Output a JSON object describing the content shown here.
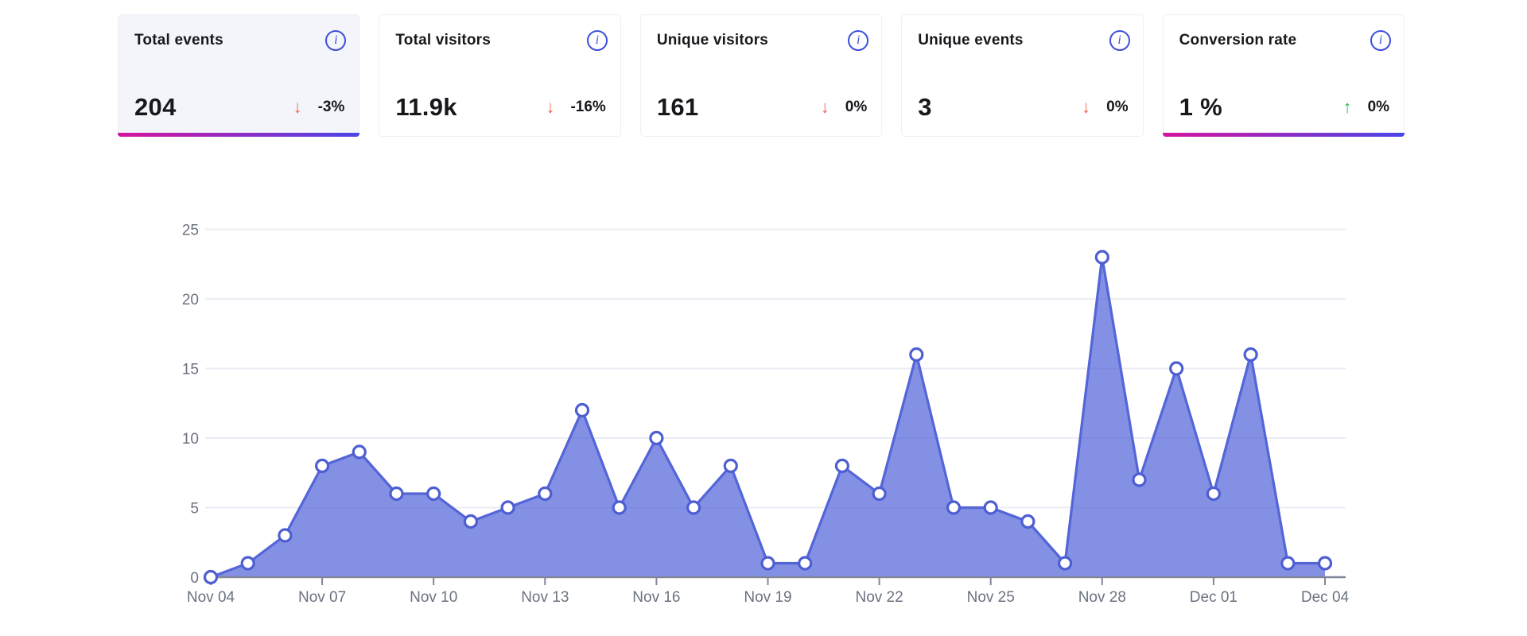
{
  "cards": [
    {
      "title": "Total events",
      "value": "204",
      "delta": "-3%",
      "trend": "down"
    },
    {
      "title": "Total visitors",
      "value": "11.9k",
      "delta": "-16%",
      "trend": "down"
    },
    {
      "title": "Unique visitors",
      "value": "161",
      "delta": "0%",
      "trend": "down"
    },
    {
      "title": "Unique events",
      "value": "3",
      "delta": "0%",
      "trend": "down"
    },
    {
      "title": "Conversion rate",
      "value": "1 %",
      "delta": "0%",
      "trend": "up"
    }
  ],
  "icons": {
    "info": "i",
    "trend_down": "↓",
    "trend_up": "↑"
  },
  "colors": {
    "accent_gradient_from": "#d6149e",
    "accent_gradient_to": "#4a46e8",
    "selected_card_bg": "#f4f5fb",
    "card_border": "#efeff5",
    "trend_down": "#ef6352",
    "trend_up": "#26c048",
    "info_icon": "#3d4fd8",
    "chart_line": "#5465d8",
    "chart_fill": "#5465d8",
    "chart_fill_opacity": 0.72,
    "marker_fill": "#ffffff",
    "marker_stroke": "#4d5ed2",
    "grid_line": "#ecedf4",
    "axis_line": "#81879a",
    "tick_text": "#6b7280"
  },
  "chart_data": {
    "type": "area",
    "title": "",
    "xlabel": "",
    "ylabel": "",
    "x": [
      "Nov 04",
      "Nov 05",
      "Nov 06",
      "Nov 07",
      "Nov 08",
      "Nov 09",
      "Nov 10",
      "Nov 11",
      "Nov 12",
      "Nov 13",
      "Nov 14",
      "Nov 15",
      "Nov 16",
      "Nov 17",
      "Nov 18",
      "Nov 19",
      "Nov 20",
      "Nov 21",
      "Nov 22",
      "Nov 23",
      "Nov 24",
      "Nov 25",
      "Nov 26",
      "Nov 27",
      "Nov 28",
      "Nov 29",
      "Nov 30",
      "Dec 01",
      "Dec 02",
      "Dec 03",
      "Dec 04"
    ],
    "values": [
      0,
      1,
      3,
      8,
      9,
      6,
      6,
      4,
      5,
      6,
      12,
      5,
      10,
      5,
      8,
      1,
      1,
      8,
      6,
      16,
      5,
      5,
      4,
      1,
      23,
      7,
      15,
      6,
      16,
      1,
      1
    ],
    "yticks": [
      0,
      5,
      10,
      15,
      20,
      25
    ],
    "ylim": [
      0,
      25
    ],
    "x_labeled_every": 3,
    "grid": true,
    "legend": false,
    "markers": true
  }
}
